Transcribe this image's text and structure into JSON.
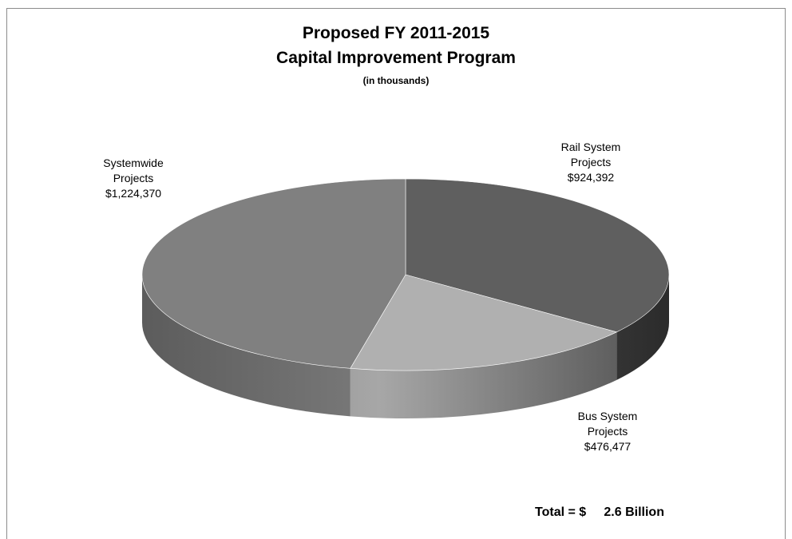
{
  "chart_data": {
    "type": "pie",
    "title": "Proposed FY 2011-2015",
    "subtitle": "Capital Improvement Program",
    "units_note": "(in thousands)",
    "slices": [
      {
        "label_line1": "Rail System",
        "label_line2": "Projects",
        "value_label": "$924,392",
        "value": 924392,
        "color": "#5f5f5f"
      },
      {
        "label_line1": "Bus System",
        "label_line2": "Projects",
        "value_label": "$476,477",
        "value": 476477,
        "color": "#b0b0b0"
      },
      {
        "label_line1": "Systemwide",
        "label_line2": "Projects",
        "value_label": "$1,224,370",
        "value": 1224370,
        "color": "#808080"
      }
    ],
    "total_label": "Total = $     2.6 Billion"
  }
}
